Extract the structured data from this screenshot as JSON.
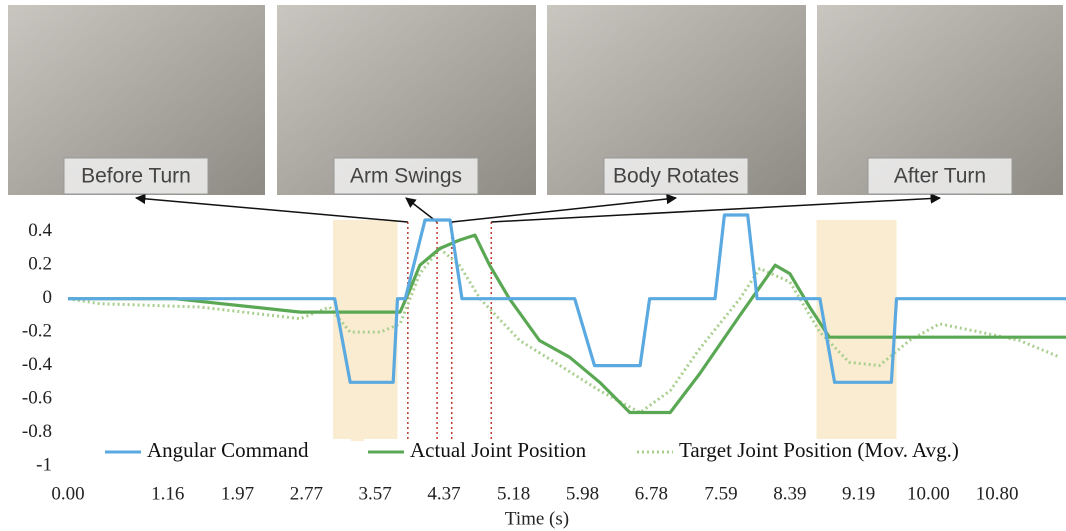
{
  "chart_data": {
    "type": "line",
    "xlabel": "Time (s)",
    "xlim": [
      0,
      11.6
    ],
    "ylim": [
      -1,
      0.5
    ],
    "xticks": [
      {
        "value": 0,
        "label": "0.00"
      },
      1.16,
      1.97,
      2.77,
      3.57,
      4.37,
      5.18,
      5.98,
      6.78,
      7.59,
      8.39,
      9.19,
      {
        "value": 10,
        "label": "10.00"
      },
      {
        "value": 10.8,
        "label": "10.80"
      }
    ],
    "yticks": [
      0.4,
      0.2,
      0,
      -0.2,
      -0.4,
      -0.6,
      -0.8,
      -1
    ],
    "grid": false,
    "legend": "bottom",
    "highlights": [
      [
        3.08,
        3.83
      ],
      [
        8.7,
        9.63
      ]
    ],
    "annotations": [
      {
        "text": "Before Turn",
        "x": 3.95
      },
      {
        "text": "Arm Swings",
        "x": 4.29
      },
      {
        "text": "Body Rotates",
        "x": 4.46
      },
      {
        "text": "After Turn",
        "x": 4.92
      }
    ],
    "series": [
      {
        "name": "Angular Command",
        "color": "#5aa9e0",
        "style": "solid",
        "x": [
          0,
          3.1,
          3.28,
          3.78,
          3.83,
          3.92,
          4.15,
          4.44,
          4.58,
          5.89,
          6.12,
          6.65,
          6.76,
          7.52,
          7.63,
          7.9,
          8.01,
          8.74,
          8.91,
          9.57,
          9.63,
          11.6
        ],
        "values": [
          0,
          0,
          -0.5,
          -0.5,
          0,
          0,
          0.47,
          0.47,
          0,
          0,
          -0.4,
          -0.4,
          0,
          0,
          0.5,
          0.5,
          0,
          0,
          -0.5,
          -0.5,
          0,
          0
        ]
      },
      {
        "name": "Actual Joint Position",
        "color": "#5aa854",
        "style": "solid",
        "x": [
          0,
          1.24,
          2.7,
          3.86,
          3.97,
          4.09,
          4.32,
          4.55,
          4.73,
          4.9,
          5.13,
          5.48,
          5.83,
          6.18,
          6.53,
          7.0,
          7.34,
          7.81,
          8.22,
          8.39,
          8.62,
          8.85,
          11.6
        ],
        "values": [
          0,
          0,
          -0.08,
          -0.08,
          0.05,
          0.2,
          0.3,
          0.35,
          0.38,
          0.2,
          0,
          -0.25,
          -0.35,
          -0.5,
          -0.68,
          -0.68,
          -0.45,
          -0.1,
          0.2,
          0.15,
          -0.05,
          -0.23,
          -0.23
        ]
      },
      {
        "name": "Target Joint Position (Mov. Avg.)",
        "color": "#a9cf8f",
        "style": "dotted",
        "x": [
          0,
          0.37,
          1.53,
          2.7,
          3.04,
          3.28,
          3.63,
          3.86,
          4.09,
          4.32,
          4.55,
          4.79,
          5.25,
          5.72,
          6.18,
          6.65,
          7.0,
          7.34,
          7.81,
          8.04,
          8.39,
          8.74,
          9.08,
          9.43,
          9.78,
          10.13,
          10.6,
          11.06,
          11.53
        ],
        "values": [
          0,
          -0.03,
          -0.05,
          -0.12,
          -0.05,
          -0.2,
          -0.2,
          -0.15,
          0.15,
          0.3,
          0.2,
          0,
          -0.25,
          -0.4,
          -0.55,
          -0.68,
          -0.55,
          -0.3,
          0,
          0.18,
          0.1,
          -0.2,
          -0.38,
          -0.4,
          -0.25,
          -0.15,
          -0.2,
          -0.25,
          -0.35
        ]
      }
    ]
  }
}
